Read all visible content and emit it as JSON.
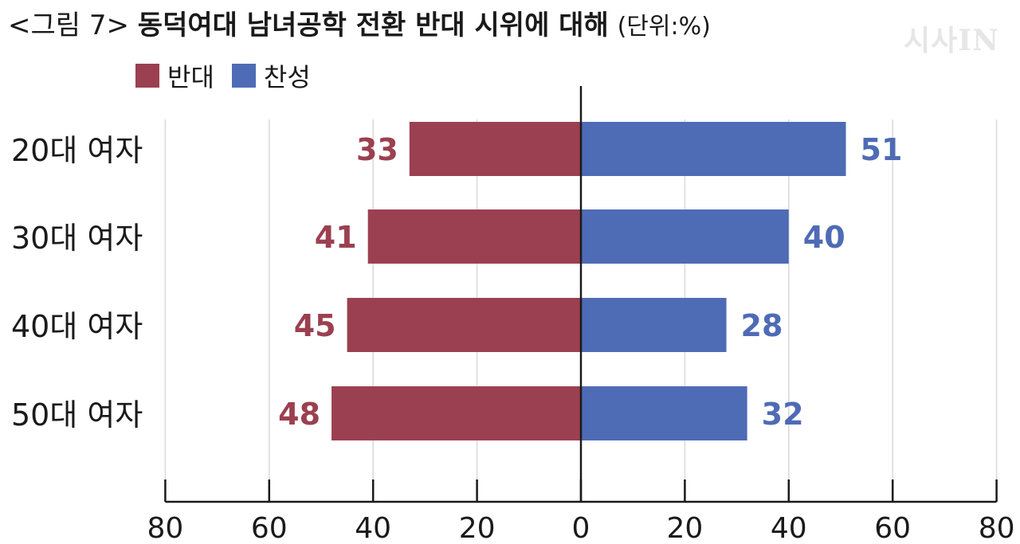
{
  "title": {
    "prefix": "<그림 7>",
    "main": "동덕여대 남녀공학 전환 반대 시위에 대해",
    "unit": "(단위:%)"
  },
  "watermark": "시사IN",
  "colors": {
    "oppose": "#9b4050",
    "support": "#4e6bb5",
    "axis": "#1a1a1a",
    "grid": "#d9d9d9"
  },
  "chart_data": {
    "type": "bar",
    "orientation": "diverging-horizontal",
    "categories": [
      "20대 여자",
      "30대 여자",
      "40대 여자",
      "50대 여자"
    ],
    "series": [
      {
        "name": "반대",
        "values": [
          33,
          41,
          45,
          48
        ],
        "color": "#9b4050",
        "direction": "left"
      },
      {
        "name": "찬성",
        "values": [
          51,
          40,
          28,
          32
        ],
        "color": "#4e6bb5",
        "direction": "right"
      }
    ],
    "xlim": [
      -80,
      80
    ],
    "xticks": [
      "80",
      "60",
      "40",
      "20",
      "0",
      "20",
      "40",
      "60",
      "80"
    ],
    "grid": true,
    "legend": "top-left"
  }
}
